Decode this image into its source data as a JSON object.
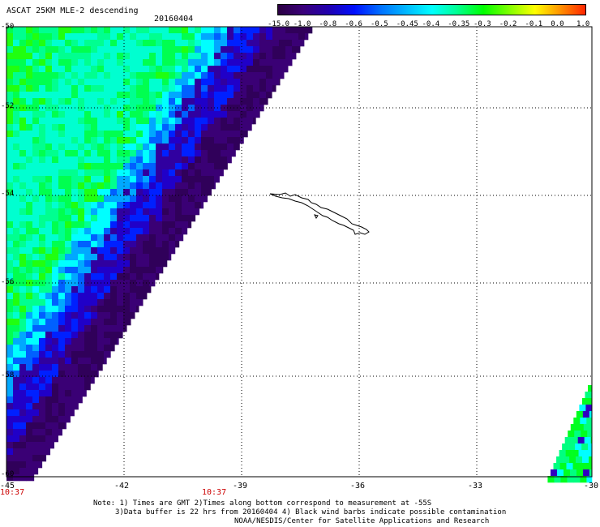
{
  "header": {
    "title": "ASCAT 25KM MLE-2 descending",
    "date": "20160404"
  },
  "colorbar": {
    "labels": [
      "-15.0",
      "-1.0",
      "-0.8",
      "-0.6",
      "-0.5",
      "-0.45",
      "-0.4",
      "-0.35",
      "-0.3",
      "-0.2",
      "-0.1",
      "0.0",
      "1.0"
    ],
    "colors": [
      "#2a0040",
      "#3a007a",
      "#2000b0",
      "#0010ff",
      "#0070ff",
      "#00b8ff",
      "#00ffff",
      "#00ff90",
      "#00ff00",
      "#80ff00",
      "#ffff00",
      "#ff9000",
      "#ff2000"
    ]
  },
  "map": {
    "lat_labels": [
      "-50",
      "-52",
      "-54",
      "-56",
      "-58",
      "-60"
    ],
    "lon_labels": [
      "-45",
      "-42",
      "-39",
      "-36",
      "-33",
      "-30"
    ],
    "time_labels": [
      "10:37",
      "10:37"
    ]
  },
  "note": {
    "line1": "Note: 1) Times are GMT 2)Times along bottom correspond to measurement at -55S",
    "line2": "3)Data buffer is 22 hrs from 20160404 4) Black wind barbs indicate possible contamination",
    "line3": "NOAA/NESDIS/Center for Satellite Applications and Research"
  }
}
